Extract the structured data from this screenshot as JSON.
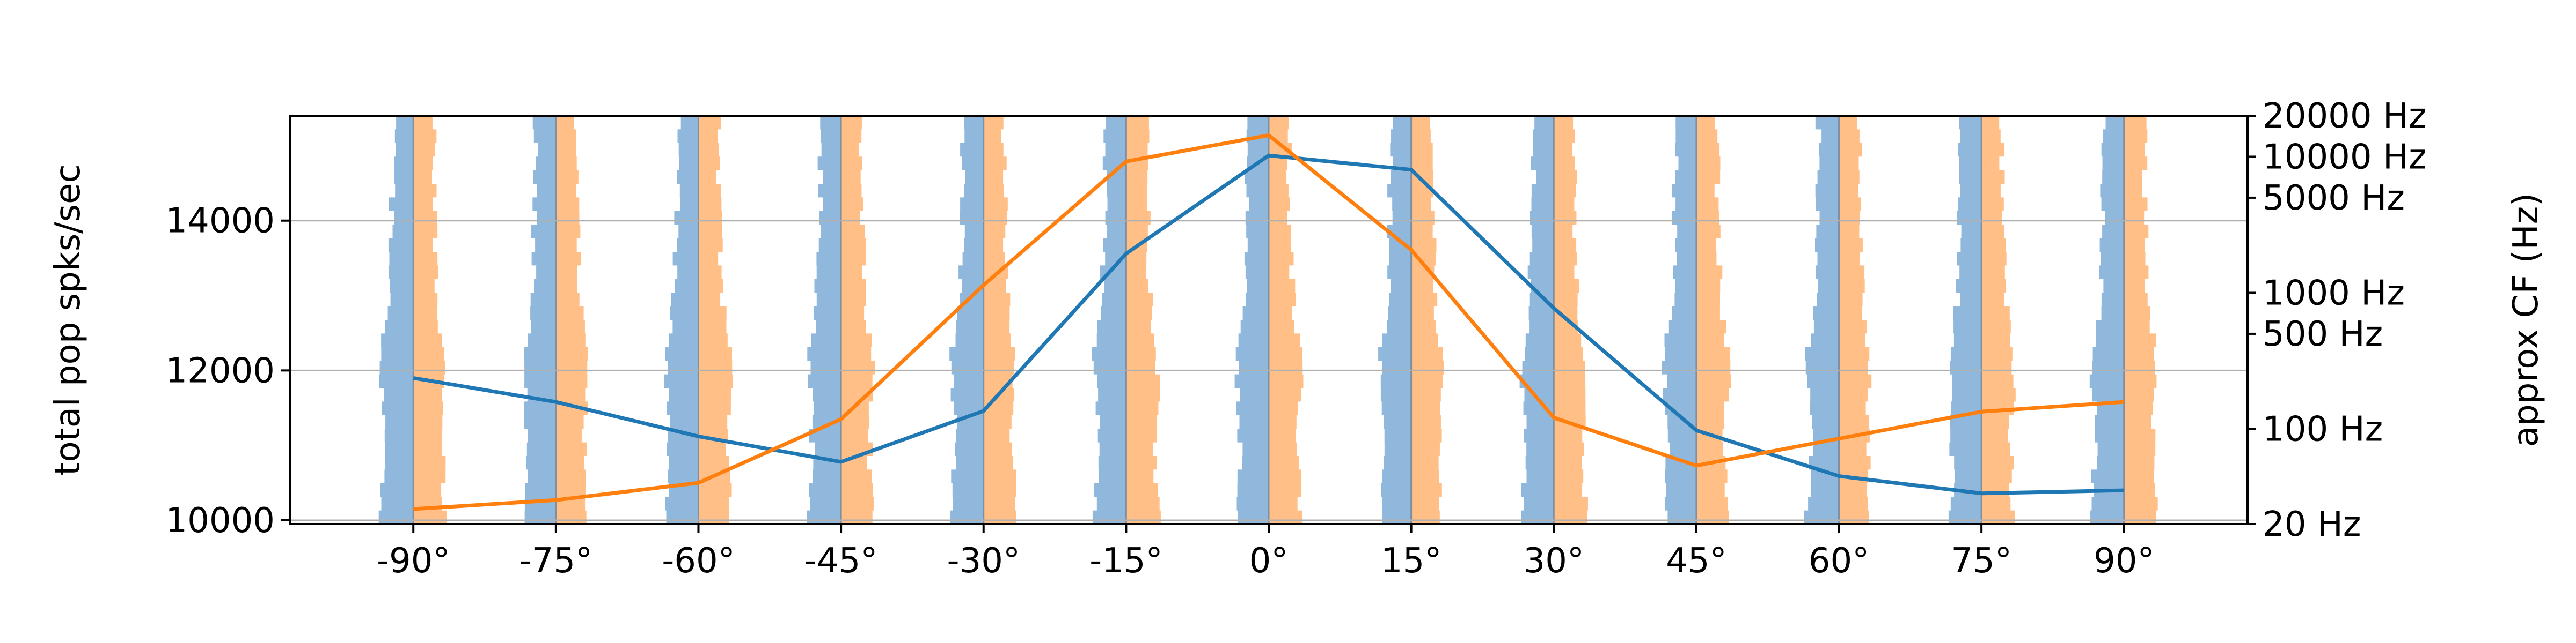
{
  "chart_data": {
    "type": "line",
    "title": "",
    "xlabel": "",
    "ylabel": "total pop spks/sec",
    "y2label": "approx CF (Hz)",
    "x": [
      -90,
      -75,
      -60,
      -45,
      -30,
      -15,
      0,
      15,
      30,
      45,
      60,
      75,
      90
    ],
    "x_tick_labels": [
      "-90°",
      "-75°",
      "-60°",
      "-45°",
      "-30°",
      "-15°",
      "0°",
      "15°",
      "30°",
      "45°",
      "60°",
      "75°",
      "90°"
    ],
    "xlim": [
      -103,
      103
    ],
    "ylim": [
      9950,
      15400
    ],
    "y_ticks": [
      10000,
      12000,
      14000
    ],
    "y_tick_labels": [
      "10000",
      "12000",
      "14000"
    ],
    "y2_scale": "log",
    "y2_ticks": [
      20,
      100,
      500,
      1000,
      5000,
      10000,
      20000
    ],
    "y2_tick_labels": [
      "20 Hz",
      "100 Hz",
      "500 Hz",
      "1000 Hz",
      "5000 Hz",
      "10000 Hz",
      "20000 Hz"
    ],
    "grid": "horizontal",
    "series": [
      {
        "color": "#1f77b4",
        "values": [
          11900,
          11580,
          11120,
          10780,
          11460,
          13560,
          14870,
          14680,
          12830,
          11200,
          10590,
          10360,
          10400
        ]
      },
      {
        "color": "#ff7f0e",
        "values": [
          10150,
          10270,
          10500,
          11350,
          13140,
          14790,
          15140,
          13610,
          11370,
          10730,
          11090,
          11450,
          11580
        ]
      }
    ],
    "histogram_colors": {
      "left": "#8fb8dc",
      "right": "#ffbf87"
    }
  }
}
